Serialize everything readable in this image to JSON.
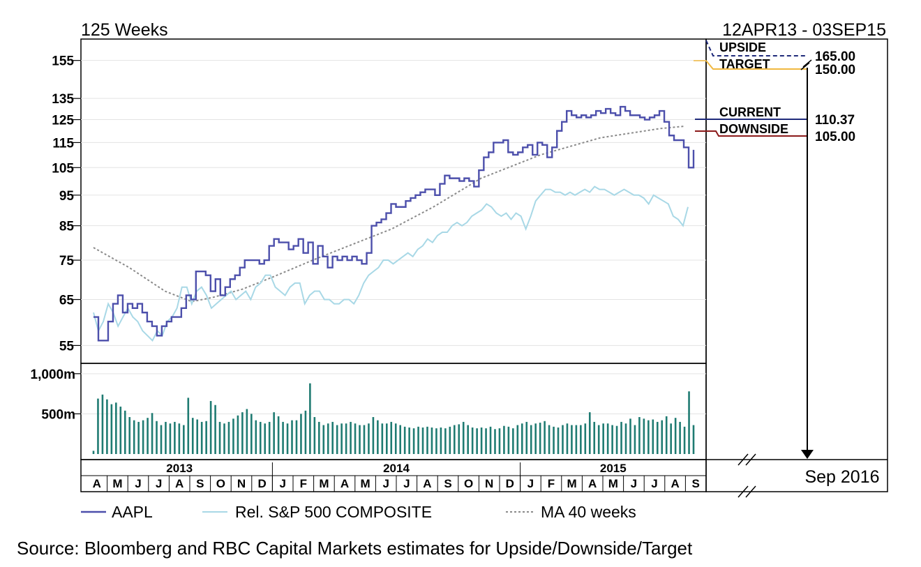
{
  "chart_data": {
    "type": "line",
    "header_left": "125 Weeks",
    "header_right": "12APR13 - 03SEP15",
    "price_axis": {
      "ticks": [
        55,
        65,
        75,
        85,
        95,
        105,
        115,
        125,
        135,
        155
      ],
      "range": [
        53,
        165
      ],
      "scale": "log"
    },
    "volume_axis": {
      "ticks": [
        {
          "label": "1,000m",
          "value": 1000
        },
        {
          "label": "500m",
          "value": 500
        }
      ],
      "range": [
        0,
        1120
      ]
    },
    "years": [
      {
        "label": "2013",
        "month_start": 0
      },
      {
        "label": "2014",
        "month_start": 9
      },
      {
        "label": "2015",
        "month_start": 21
      }
    ],
    "months": [
      "A",
      "M",
      "J",
      "J",
      "A",
      "S",
      "O",
      "N",
      "D",
      "J",
      "F",
      "M",
      "A",
      "M",
      "J",
      "J",
      "A",
      "S",
      "O",
      "N",
      "D",
      "J",
      "F",
      "M",
      "A",
      "M",
      "J",
      "J",
      "A",
      "S"
    ],
    "series": [
      {
        "name": "AAPL",
        "color": "#4c4fab",
        "values": [
          61,
          56,
          56,
          60,
          64,
          66,
          62,
          64,
          63,
          64,
          62,
          60,
          59,
          57,
          59,
          60,
          61,
          61,
          63,
          66,
          65,
          72,
          72,
          71,
          67,
          70,
          66,
          68,
          70,
          71,
          73,
          75,
          75,
          75,
          74,
          75,
          79,
          81,
          80,
          80,
          78,
          79,
          81,
          77,
          80,
          74,
          79,
          76,
          73,
          76,
          75,
          76,
          75,
          76,
          75,
          74,
          77,
          85,
          86,
          87,
          89,
          92,
          91,
          91,
          93,
          94,
          95,
          96,
          97,
          97,
          95,
          99,
          102,
          101,
          101,
          100,
          101,
          100,
          98,
          104,
          109,
          111,
          115,
          115,
          116,
          111,
          110,
          111,
          113,
          114,
          110,
          115,
          114,
          109,
          113,
          120,
          124,
          129,
          127,
          126,
          127,
          126,
          127,
          129,
          128,
          130,
          128,
          127,
          131,
          129,
          127,
          127,
          126,
          125,
          126,
          127,
          129,
          124,
          118,
          116,
          116,
          113,
          105,
          112
        ]
      },
      {
        "name": "Rel. S&P 500 COMPOSITE",
        "color": "#a8d8e6",
        "values": [
          62,
          58,
          60,
          64,
          62,
          59,
          61,
          63,
          61,
          60,
          58,
          57,
          56,
          58,
          57,
          60,
          61,
          63,
          68,
          68,
          64,
          67,
          68,
          66,
          63,
          64,
          65,
          66,
          67,
          65,
          66,
          67,
          65,
          68,
          69,
          71,
          71,
          68,
          67,
          66,
          68,
          69,
          69,
          64,
          66,
          67,
          67,
          65,
          65,
          64,
          64,
          65,
          65,
          64,
          66,
          69,
          71,
          72,
          73,
          75,
          75,
          74,
          75,
          76,
          77,
          76,
          78,
          79,
          81,
          80,
          82,
          83,
          83,
          85,
          86,
          85,
          86,
          88,
          89,
          90,
          92,
          91,
          89,
          88,
          89,
          87,
          89,
          88,
          84,
          88,
          93,
          95,
          97,
          97,
          96,
          96,
          95,
          96,
          95,
          96,
          97,
          96,
          98,
          97,
          97,
          96,
          95,
          96,
          97,
          96,
          95,
          95,
          94,
          92,
          95,
          94,
          93,
          92,
          88,
          87,
          85,
          91
        ]
      },
      {
        "name": "MA 40 weeks",
        "color": "#8a8a8a",
        "style": "dotted",
        "values": [
          [
            0,
            78.5
          ],
          [
            12,
            73
          ],
          [
            24,
            67
          ],
          [
            33,
            64.5
          ],
          [
            40,
            65.5
          ],
          [
            50,
            67.5
          ],
          [
            60,
            70.5
          ],
          [
            75,
            75.5
          ],
          [
            90,
            80.5
          ],
          [
            100,
            84
          ],
          [
            114,
            91
          ],
          [
            130,
            101
          ],
          [
            150,
            110
          ],
          [
            170,
            117
          ],
          [
            190,
            121
          ],
          [
            198,
            122
          ]
        ]
      }
    ],
    "volume": {
      "name": "Volume",
      "color": "#1f7b72",
      "values": [
        40,
        690,
        740,
        680,
        620,
        640,
        590,
        540,
        460,
        420,
        400,
        420,
        450,
        510,
        410,
        360,
        400,
        380,
        400,
        380,
        360,
        700,
        450,
        430,
        400,
        410,
        660,
        610,
        400,
        380,
        400,
        440,
        480,
        520,
        560,
        500,
        420,
        400,
        380,
        400,
        520,
        470,
        400,
        380,
        420,
        420,
        500,
        540,
        880,
        460,
        400,
        360,
        380,
        400,
        360,
        380,
        380,
        400,
        380,
        360,
        360,
        380,
        460,
        420,
        380,
        380,
        400,
        380,
        360,
        340,
        330,
        320,
        340,
        330,
        340,
        330,
        320,
        330,
        320,
        340,
        360,
        370,
        400,
        360,
        330,
        320,
        330,
        320,
        340,
        310,
        320,
        350,
        340,
        320,
        360,
        380,
        400,
        360,
        380,
        390,
        410,
        360,
        340,
        330,
        360,
        380,
        360,
        360,
        360,
        380,
        520,
        400,
        360,
        380,
        380,
        360,
        350,
        400,
        380,
        440,
        360,
        460,
        440,
        420,
        430,
        400,
        420,
        470,
        380,
        450,
        400,
        340,
        780,
        360
      ]
    },
    "price_levels": [
      {
        "label": "UPSIDE",
        "value_label": "165.00",
        "value": 165,
        "color": "#1f2a7a",
        "style": "dashed"
      },
      {
        "label": "TARGET",
        "value_label": "150.00",
        "value": 150,
        "color": "#f0b840",
        "style": "solid"
      },
      {
        "label": "CURRENT",
        "value_label": "110.37",
        "value": 110.37,
        "color": "#1f2a7a",
        "style": "solid"
      },
      {
        "label": "DOWNSIDE",
        "value_label": "105.00",
        "value": 105,
        "color": "#8b1a1a",
        "style": "solid"
      }
    ],
    "target_date": "Sep 2016",
    "legend": [
      {
        "label": "AAPL",
        "color": "#4c4fab",
        "style": "solid"
      },
      {
        "label": "Rel. S&P 500 COMPOSITE",
        "color": "#a8d8e6",
        "style": "solid"
      },
      {
        "label": "MA 40 weeks",
        "color": "#8a8a8a",
        "style": "dotted"
      }
    ],
    "source": "Source: Bloomberg and RBC Capital Markets estimates for Upside/Downside/Target"
  }
}
